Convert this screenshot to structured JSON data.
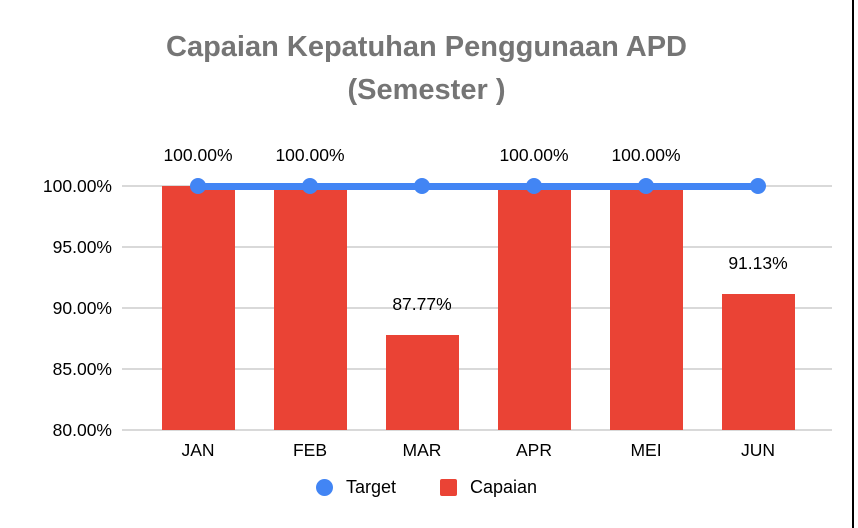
{
  "title_lines": [
    "Capaian Kepatuhan Penggunaan APD",
    "(Semester )"
  ],
  "chart_data": {
    "type": "bar",
    "subtype": "combo-bar-line",
    "title": "Capaian Kepatuhan Penggunaan APD (Semester )",
    "categories": [
      "JAN",
      "FEB",
      "MAR",
      "APR",
      "MEI",
      "JUN"
    ],
    "series": [
      {
        "name": "Target",
        "render": "line",
        "color": "#4285F4",
        "values": [
          100,
          100,
          100,
          100,
          100,
          100
        ]
      },
      {
        "name": "Capaian",
        "render": "bar",
        "color": "#EA4335",
        "values": [
          100.0,
          100.0,
          87.77,
          100.0,
          100.0,
          91.13
        ]
      }
    ],
    "bar_labels": [
      "100.00%",
      "100.00%",
      "87.77%",
      "100.00%",
      "100.00%",
      "91.13%"
    ],
    "y_ticks": [
      {
        "value": 100,
        "label": "100.00%"
      },
      {
        "value": 95,
        "label": "95.00%"
      },
      {
        "value": 90,
        "label": "90.00%"
      },
      {
        "value": 85,
        "label": "85.00%"
      },
      {
        "value": 80,
        "label": "80.00%"
      }
    ],
    "ylim": [
      80,
      100
    ],
    "grid": true,
    "legend_position": "bottom"
  },
  "colors": {
    "bar": "#EA4335",
    "line": "#4285F4",
    "gridline": "#d9d9d9",
    "title": "#757575",
    "border": "#000000"
  }
}
